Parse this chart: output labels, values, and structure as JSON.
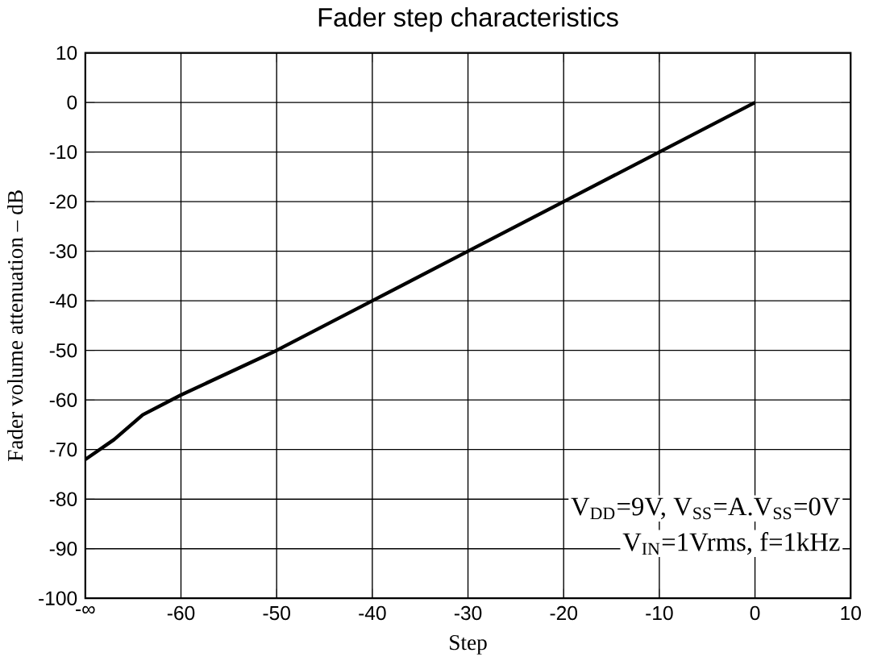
{
  "chart_data": {
    "type": "line",
    "title": "Fader step characteristics",
    "xlabel": "Step",
    "ylabel": "Fader volume attenuation – dB",
    "x": [
      -70,
      -67,
      -64,
      -60,
      -50,
      -40,
      -30,
      -20,
      -10,
      0
    ],
    "values": [
      -72,
      -68,
      -63,
      -59,
      -50,
      -40,
      -30,
      -20,
      -10,
      0
    ],
    "color": "#000000",
    "grid": true,
    "xlim": [
      -70,
      10
    ],
    "xticks": [
      {
        "value": -70,
        "label": "-∞"
      },
      -60,
      -50,
      -40,
      -30,
      -20,
      -10,
      0,
      10
    ],
    "ylim": [
      -100,
      10
    ],
    "yticks": [
      -100,
      -90,
      -80,
      -70,
      -60,
      -50,
      -40,
      -30,
      -20,
      -10,
      0,
      10
    ],
    "annotations": [
      "V$_{DD}$=9V, V$_{SS}$=A.V$_{SS}$=0V",
      "V$_{IN}$=1Vrms, f=1kHz"
    ]
  }
}
